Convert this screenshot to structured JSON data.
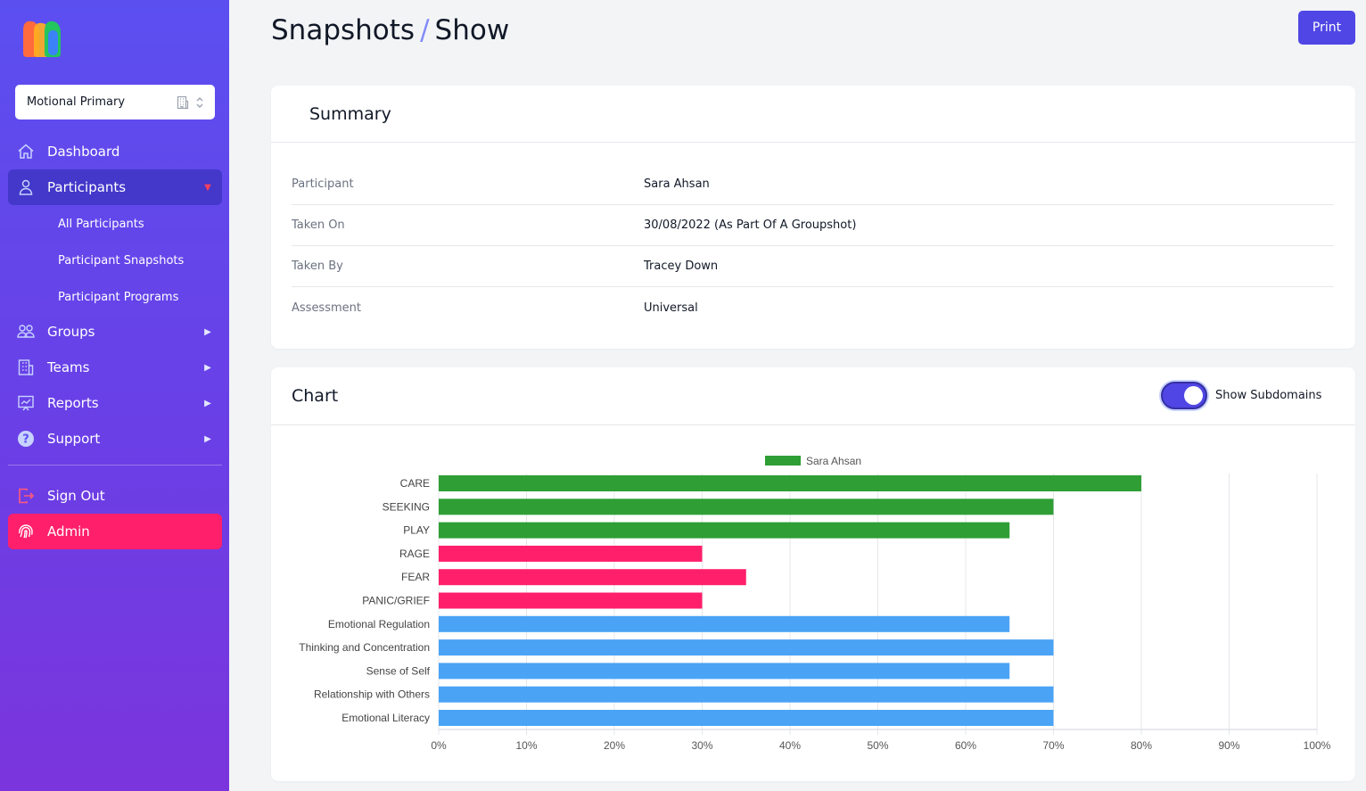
{
  "sidebar": {
    "org_select": {
      "value": "Motional Primary"
    },
    "items": [
      {
        "label": "Dashboard"
      },
      {
        "label": "Participants"
      },
      {
        "label": "Groups"
      },
      {
        "label": "Teams"
      },
      {
        "label": "Reports"
      },
      {
        "label": "Support"
      },
      {
        "label": "Sign Out"
      },
      {
        "label": "Admin"
      }
    ],
    "sub_items": [
      {
        "label": "All Participants"
      },
      {
        "label": "Participant Snapshots"
      },
      {
        "label": "Participant Programs"
      }
    ]
  },
  "header": {
    "breadcrumb_parent": "Snapshots",
    "separator": "/",
    "breadcrumb_current": "Show",
    "print_label": "Print"
  },
  "summary": {
    "title": "Summary",
    "rows": [
      {
        "key": "Participant",
        "value": "Sara Ahsan"
      },
      {
        "key": "Taken On",
        "value": "30/08/2022 (As Part Of A Groupshot)"
      },
      {
        "key": "Taken By",
        "value": "Tracey Down"
      },
      {
        "key": "Assessment",
        "value": "Universal"
      }
    ]
  },
  "chart_section": {
    "title": "Chart",
    "toggle_label": "Show Subdomains",
    "toggle_on": true
  },
  "colors": {
    "accent": "#4f46e5",
    "admin": "#ff1f6b",
    "green": "#2e9e35",
    "pink": "#ff1f6b",
    "blue": "#4aa3f5"
  },
  "chart_data": {
    "type": "bar",
    "orientation": "horizontal",
    "legend_position": "top",
    "grid": true,
    "categories": [
      "CARE",
      "SEEKING",
      "PLAY",
      "RAGE",
      "FEAR",
      "PANIC/GRIEF",
      "Emotional Regulation",
      "Thinking and Concentration",
      "Sense of Self",
      "Relationship with Others",
      "Emotional Literacy"
    ],
    "series": [
      {
        "name": "Sara Ahsan",
        "values": [
          80,
          70,
          65,
          30,
          35,
          30,
          65,
          70,
          65,
          70,
          70
        ]
      }
    ],
    "bar_colors": [
      "#2e9e35",
      "#2e9e35",
      "#2e9e35",
      "#ff1f6b",
      "#ff1f6b",
      "#ff1f6b",
      "#4aa3f5",
      "#4aa3f5",
      "#4aa3f5",
      "#4aa3f5",
      "#4aa3f5"
    ],
    "x_ticks": [
      "0%",
      "10%",
      "20%",
      "30%",
      "40%",
      "50%",
      "60%",
      "70%",
      "80%",
      "90%",
      "100%"
    ],
    "xlim": [
      0,
      100
    ]
  }
}
